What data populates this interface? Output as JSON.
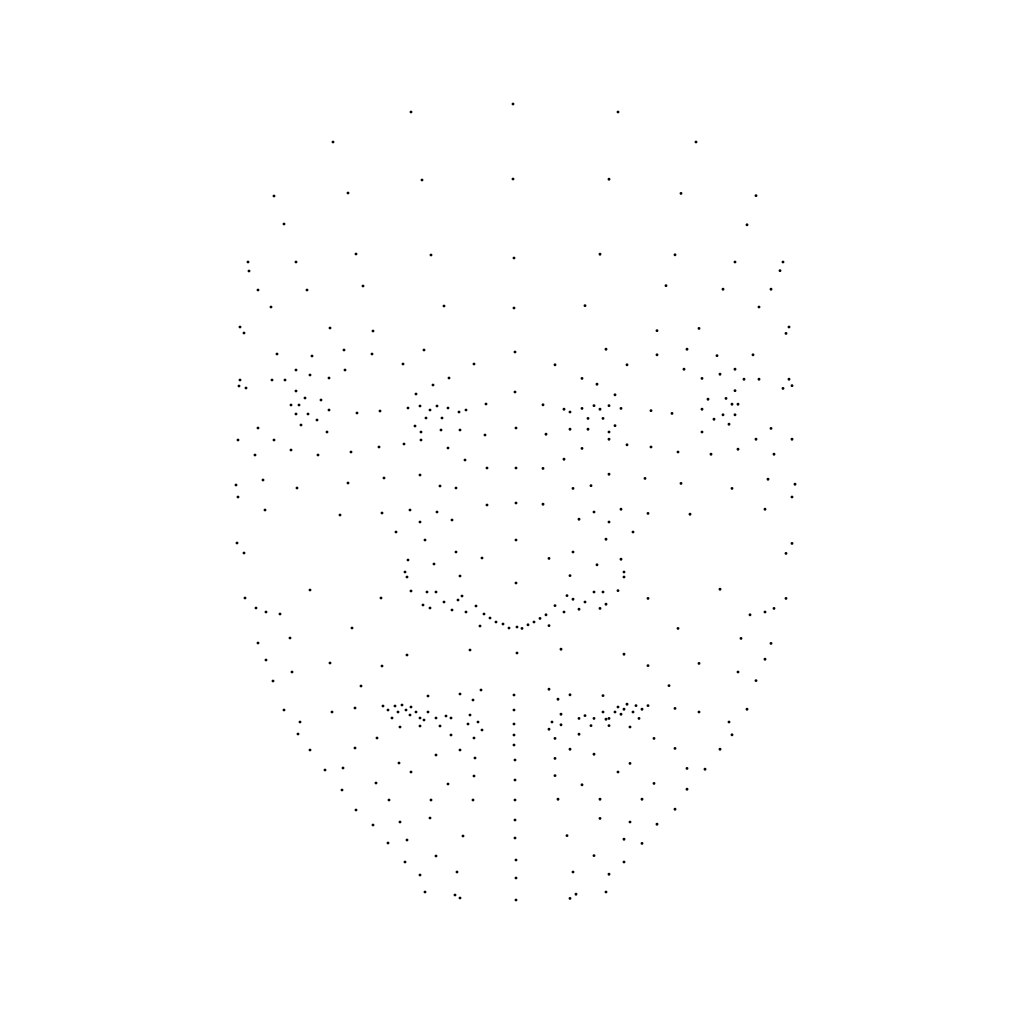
{
  "figure": {
    "kind": "face-landmark-point-cloud",
    "background_color": "#ffffff",
    "point_color": "#000000",
    "has_text": false
  }
}
